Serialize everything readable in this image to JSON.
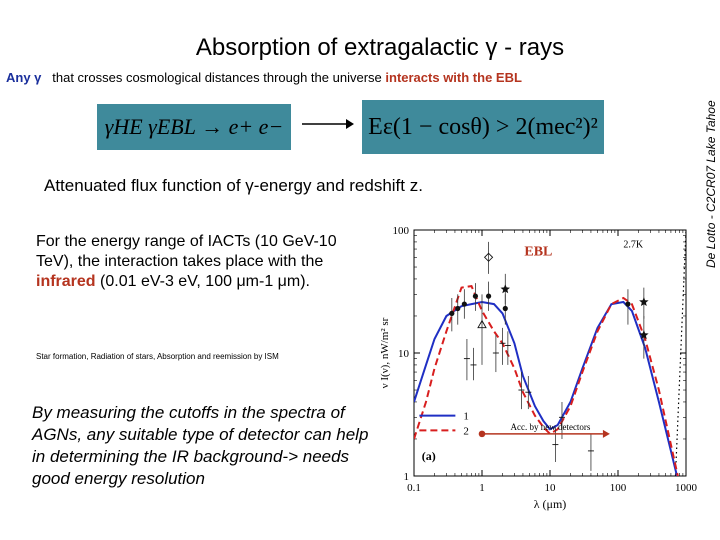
{
  "slide": {
    "side_credit": "De Lotto - C2CR07 Lake Tahoe",
    "title": "Absorption of extragalactic γ - rays",
    "any_line": {
      "lead": "Any γ",
      "middle": "that crosses cosmological distances through the universe",
      "highlight": "interacts with the EBL"
    },
    "equation_left": "γHE γEBL → e+ e−",
    "equation_right": "Eε(1 − cosθ) > 2(mec²)²",
    "subtitle": "Attenuated flux function of γ-energy and redshift z.",
    "energy_para": {
      "before": "For the energy range of IACTs (10 GeV-10 TeV), the interaction takes place with the",
      "highlight": "infrared",
      "after": "(0.01 eV-3 eV, 100 μm-1 μm)."
    },
    "star_note": "Star formation, Radiation of stars, Absorption and reemission by ISM",
    "cutoff_para": "By measuring the cutoffs in the spectra of AGNs, any suitable type of detector can help in determining the IR background-> needs good energy resolution"
  },
  "colors": {
    "accent_red": "#b5341f",
    "accent_blue": "#1a2f9c",
    "equation_bg": "#3f8a9b",
    "curve_blue": "#1f2fc4",
    "curve_red": "#d81e1e"
  },
  "chart_data": {
    "type": "line",
    "xscale": "log",
    "yscale": "log",
    "xlim": [
      0.1,
      1000
    ],
    "ylim": [
      1,
      100
    ],
    "xticks": [
      "0.1",
      "1",
      "10",
      "100",
      "1000"
    ],
    "yticks": [
      "1",
      "10",
      "100"
    ],
    "xlabel": "λ (μm)",
    "ylabel": "ν I(ν), nW/m² sr",
    "panel_label": "(a)",
    "ebl_label": "EBL",
    "cmb_label": "2.7K",
    "range_label": "Acc. by new detectors",
    "range": [
      1,
      60
    ],
    "legend": [
      "1",
      "2"
    ],
    "series": [
      {
        "name": "1",
        "style": "solid",
        "x": [
          0.1,
          0.15,
          0.2,
          0.3,
          0.5,
          0.7,
          1,
          1.5,
          2,
          3,
          4,
          6,
          8,
          10,
          13,
          20,
          30,
          50,
          80,
          120,
          160,
          250,
          400,
          600,
          1000
        ],
        "y": [
          4,
          8,
          13,
          20,
          24,
          25,
          26,
          25,
          21,
          12,
          6.5,
          3.7,
          2.8,
          2.4,
          2.6,
          4.0,
          7.5,
          16,
          25,
          26,
          22,
          11,
          4,
          1.6,
          0.5
        ]
      },
      {
        "name": "2",
        "style": "dashed",
        "x": [
          0.1,
          0.15,
          0.2,
          0.3,
          0.5,
          0.7,
          1,
          1.5,
          2,
          3,
          4,
          6,
          8,
          10,
          13,
          20,
          30,
          50,
          80,
          120,
          160,
          250,
          400,
          600,
          1000
        ],
        "y": [
          2,
          4,
          7.5,
          15,
          34,
          35,
          22,
          15,
          12,
          7.5,
          4.8,
          3.1,
          2.5,
          2.2,
          2.4,
          3.7,
          7,
          15,
          25,
          28,
          25,
          13,
          5,
          1.8,
          0.5
        ]
      }
    ],
    "points": [
      {
        "x": 0.36,
        "y": 21,
        "lo": 15,
        "hi": 28,
        "marker": "dot"
      },
      {
        "x": 0.44,
        "y": 23,
        "lo": 17,
        "hi": 30,
        "marker": "dot"
      },
      {
        "x": 0.55,
        "y": 25,
        "lo": 19,
        "hi": 33,
        "marker": "dot"
      },
      {
        "x": 0.8,
        "y": 29,
        "lo": 22,
        "hi": 37,
        "marker": "dot"
      },
      {
        "x": 1.25,
        "y": 29,
        "lo": 22,
        "hi": 38,
        "marker": "dot"
      },
      {
        "x": 2.2,
        "y": 23,
        "lo": 17,
        "hi": 30,
        "marker": "dot"
      },
      {
        "x": 2.2,
        "y": 33,
        "lo": 25,
        "hi": 44,
        "marker": "star"
      },
      {
        "x": 1.25,
        "y": 60,
        "lo": 44,
        "hi": 80,
        "marker": "diamond"
      },
      {
        "x": 1.0,
        "y": 17,
        "lo": 8,
        "hi": 30,
        "marker": "triangle"
      },
      {
        "x": 0.6,
        "y": 9,
        "lo": 6,
        "hi": 13,
        "marker": "cross"
      },
      {
        "x": 0.75,
        "y": 8,
        "lo": 6,
        "hi": 11,
        "marker": "cross"
      },
      {
        "x": 1.6,
        "y": 10,
        "lo": 7,
        "hi": 14,
        "marker": "cross"
      },
      {
        "x": 2.0,
        "y": 12,
        "lo": 8,
        "hi": 16,
        "marker": "cross"
      },
      {
        "x": 2.4,
        "y": 11.5,
        "lo": 8,
        "hi": 15,
        "marker": "cross"
      },
      {
        "x": 3.8,
        "y": 5,
        "lo": 3.5,
        "hi": 7,
        "marker": "cross"
      },
      {
        "x": 4.8,
        "y": 4.8,
        "lo": 3.5,
        "hi": 6.5,
        "marker": "cross"
      },
      {
        "x": 12,
        "y": 1.8,
        "lo": 1.3,
        "hi": 2.5,
        "marker": "cross"
      },
      {
        "x": 15,
        "y": 3,
        "lo": 2,
        "hi": 4,
        "marker": "cross"
      },
      {
        "x": 40,
        "y": 1.6,
        "lo": 1.1,
        "hi": 2.2,
        "marker": "cross"
      },
      {
        "x": 140,
        "y": 25,
        "lo": 17,
        "hi": 33,
        "marker": "dot"
      },
      {
        "x": 240,
        "y": 26,
        "lo": 19,
        "hi": 34,
        "marker": "star"
      },
      {
        "x": 240,
        "y": 14,
        "lo": 9,
        "hi": 20,
        "marker": "star"
      }
    ],
    "cmb_dots": {
      "x": [
        700,
        1000
      ],
      "y": [
        1,
        100
      ]
    }
  }
}
